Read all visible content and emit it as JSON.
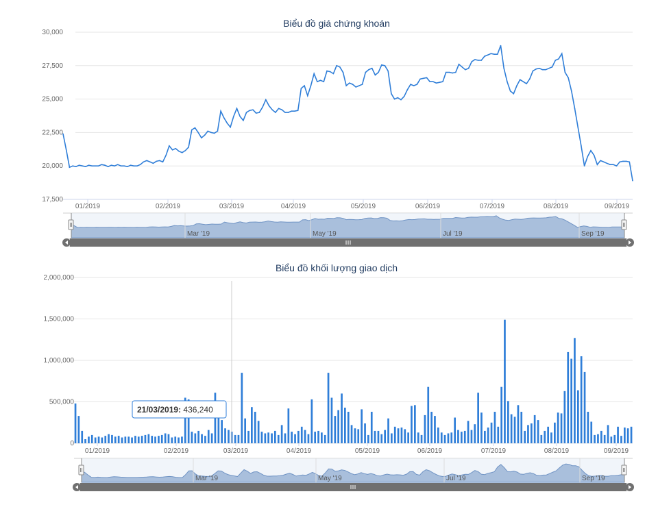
{
  "chart_data": [
    {
      "type": "line",
      "title": "Biểu đồ giá chứng khoán",
      "ylim": [
        17500,
        30000
      ],
      "y_ticks": [
        "17,500",
        "20,000",
        "22,500",
        "25,000",
        "27,500",
        "30,000"
      ],
      "x_ticks": [
        "01/2019",
        "02/2019",
        "03/2019",
        "04/2019",
        "05/2019",
        "06/2019",
        "07/2019",
        "08/2019",
        "09/2019"
      ],
      "navigator_ticks": [
        "Mar '19",
        "May '19",
        "Jul '19",
        "Sep '19"
      ],
      "grid": true,
      "color": "#2f7ed8",
      "navigator_fill": "#a9bfdc",
      "series": [
        {
          "values": [
            22400,
            21200,
            19900,
            20000,
            19950,
            20050,
            20000,
            19950,
            20050,
            20000,
            20000,
            20000,
            20100,
            20050,
            19950,
            20050,
            20000,
            20100,
            20000,
            20000,
            19950,
            20050,
            20000,
            20000,
            20100,
            20300,
            20400,
            20300,
            20200,
            20350,
            20400,
            20300,
            20800,
            21500,
            21200,
            21300,
            21100,
            21000,
            21150,
            21400,
            22700,
            22850,
            22500,
            22100,
            22300,
            22600,
            22500,
            22450,
            22600,
            24100,
            23600,
            23200,
            22900,
            23700,
            24300,
            23700,
            23400,
            24000,
            24150,
            24200,
            23950,
            24000,
            24400,
            24950,
            24500,
            24200,
            24000,
            24300,
            24200,
            24000,
            24000,
            24100,
            24100,
            24150,
            25800,
            26000,
            25250,
            26000,
            26900,
            26300,
            26400,
            26300,
            27100,
            27050,
            26900,
            27500,
            27400,
            27000,
            26000,
            26200,
            26100,
            25900,
            26000,
            26100,
            27000,
            27200,
            27300,
            26800,
            27000,
            27550,
            27500,
            27100,
            25400,
            25000,
            25100,
            24950,
            25200,
            25700,
            26100,
            26000,
            26100,
            26500,
            26550,
            26600,
            26300,
            26300,
            26200,
            26250,
            26300,
            27000,
            27000,
            26950,
            27000,
            27600,
            27400,
            27200,
            27300,
            27800,
            27950,
            27900,
            27900,
            28200,
            28300,
            28400,
            28350,
            28350,
            29000,
            27300,
            26300,
            25600,
            25400,
            26000,
            26450,
            26300,
            26150,
            26500,
            27100,
            27250,
            27300,
            27200,
            27200,
            27300,
            27400,
            27900,
            28000,
            28400,
            27000,
            26600,
            25600,
            24300,
            22900,
            21500,
            20000,
            20700,
            21150,
            20800,
            20100,
            20400,
            20300,
            20200,
            20100,
            20100,
            20000,
            20300,
            20350,
            20350,
            20300,
            18900
          ]
        }
      ]
    },
    {
      "type": "bar",
      "title": "Biểu đồ khối lượng giao dịch",
      "ylim": [
        0,
        2000000
      ],
      "y_ticks": [
        "0",
        "500,000",
        "1,000,000",
        "1,500,000",
        "2,000,000"
      ],
      "x_ticks": [
        "01/2019",
        "02/2019",
        "03/2019",
        "04/2019",
        "05/2019",
        "06/2019",
        "07/2019",
        "08/2019",
        "09/2019"
      ],
      "navigator_ticks": [
        "Mar '19",
        "May '19",
        "Jul '19",
        "Sep '19"
      ],
      "grid": true,
      "color": "#2f7ed8",
      "navigator_fill": "#a9bfdc",
      "series": [
        {
          "values": [
            480000,
            330000,
            150000,
            50000,
            80000,
            100000,
            70000,
            80000,
            70000,
            90000,
            110000,
            100000,
            80000,
            90000,
            70000,
            80000,
            80000,
            70000,
            90000,
            80000,
            90000,
            100000,
            110000,
            90000,
            80000,
            90000,
            100000,
            120000,
            110000,
            70000,
            80000,
            70000,
            80000,
            550000,
            530000,
            140000,
            120000,
            150000,
            110000,
            90000,
            160000,
            120000,
            610000,
            390000,
            280000,
            180000,
            160000,
            140000,
            100000,
            100000,
            850000,
            300000,
            150000,
            436240,
            380000,
            270000,
            140000,
            120000,
            130000,
            120000,
            150000,
            100000,
            220000,
            120000,
            420000,
            140000,
            110000,
            150000,
            200000,
            160000,
            110000,
            530000,
            140000,
            150000,
            130000,
            100000,
            850000,
            550000,
            330000,
            400000,
            600000,
            430000,
            380000,
            220000,
            180000,
            170000,
            410000,
            240000,
            100000,
            380000,
            150000,
            150000,
            110000,
            160000,
            300000,
            120000,
            200000,
            180000,
            190000,
            170000,
            130000,
            450000,
            460000,
            130000,
            100000,
            340000,
            680000,
            380000,
            330000,
            190000,
            130000,
            100000,
            120000,
            130000,
            310000,
            160000,
            140000,
            150000,
            270000,
            160000,
            230000,
            610000,
            370000,
            150000,
            190000,
            250000,
            380000,
            200000,
            680000,
            1490000,
            510000,
            350000,
            320000,
            460000,
            380000,
            150000,
            220000,
            240000,
            340000,
            280000,
            100000,
            150000,
            200000,
            130000,
            250000,
            370000,
            360000,
            630000,
            1100000,
            1020000,
            1270000,
            640000,
            1050000,
            860000,
            380000,
            260000,
            100000,
            110000,
            150000,
            100000,
            220000,
            80000,
            100000,
            200000,
            90000,
            190000,
            180000,
            200000
          ]
        }
      ],
      "tooltip": {
        "date": "21/03/2019",
        "value": "436,240"
      }
    }
  ]
}
